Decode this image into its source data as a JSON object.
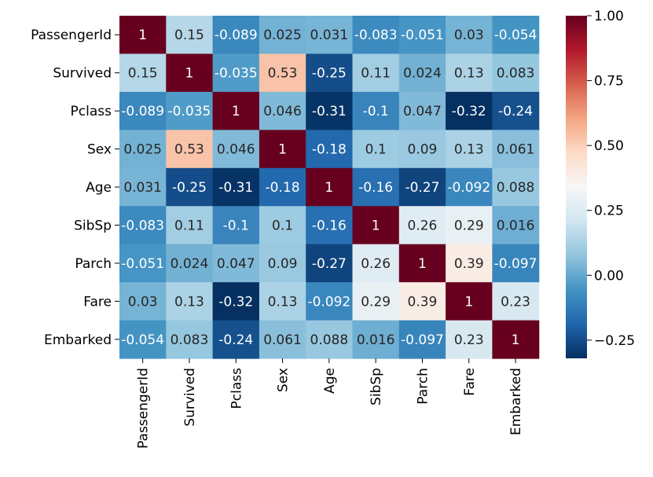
{
  "chart_data": {
    "type": "heatmap",
    "title": "",
    "xlabel": "",
    "ylabel": "",
    "rows": [
      "PassengerId",
      "Survived",
      "Pclass",
      "Sex",
      "Age",
      "SibSp",
      "Parch",
      "Fare",
      "Embarked"
    ],
    "columns": [
      "PassengerId",
      "Survived",
      "Pclass",
      "Sex",
      "Age",
      "SibSp",
      "Parch",
      "Fare",
      "Embarked"
    ],
    "values": [
      [
        1,
        0.15,
        -0.089,
        0.025,
        0.031,
        -0.083,
        -0.051,
        0.03,
        -0.054
      ],
      [
        0.15,
        1,
        -0.035,
        0.53,
        -0.25,
        0.11,
        0.024,
        0.13,
        0.083
      ],
      [
        -0.089,
        -0.035,
        1,
        0.046,
        -0.31,
        -0.1,
        0.047,
        -0.32,
        -0.24
      ],
      [
        0.025,
        0.53,
        0.046,
        1,
        -0.18,
        0.1,
        0.09,
        0.13,
        0.061
      ],
      [
        0.031,
        -0.25,
        -0.31,
        -0.18,
        1,
        -0.16,
        -0.27,
        -0.092,
        0.088
      ],
      [
        -0.083,
        0.11,
        -0.1,
        0.1,
        -0.16,
        1,
        0.26,
        0.29,
        0.016
      ],
      [
        -0.051,
        0.024,
        0.047,
        0.09,
        -0.27,
        0.26,
        1,
        0.39,
        -0.097
      ],
      [
        0.03,
        0.13,
        -0.32,
        0.13,
        -0.092,
        0.29,
        0.39,
        1,
        0.23
      ],
      [
        -0.054,
        0.083,
        -0.24,
        0.061,
        0.088,
        0.016,
        -0.097,
        0.23,
        1
      ]
    ],
    "annotations": [
      [
        "1",
        "0.15",
        "-0.089",
        "0.025",
        "0.031",
        "-0.083",
        "-0.051",
        "0.03",
        "-0.054"
      ],
      [
        "0.15",
        "1",
        "-0.035",
        "0.53",
        "-0.25",
        "0.11",
        "0.024",
        "0.13",
        "0.083"
      ],
      [
        "-0.089",
        "-0.035",
        "1",
        "0.046",
        "-0.31",
        "-0.1",
        "0.047",
        "-0.32",
        "-0.24"
      ],
      [
        "0.025",
        "0.53",
        "0.046",
        "1",
        "-0.18",
        "0.1",
        "0.09",
        "0.13",
        "0.061"
      ],
      [
        "0.031",
        "-0.25",
        "-0.31",
        "-0.18",
        "1",
        "-0.16",
        "-0.27",
        "-0.092",
        "0.088"
      ],
      [
        "-0.083",
        "0.11",
        "-0.1",
        "0.1",
        "-0.16",
        "1",
        "0.26",
        "0.29",
        "0.016"
      ],
      [
        "-0.051",
        "0.024",
        "0.047",
        "0.09",
        "-0.27",
        "0.26",
        "1",
        "0.39",
        "-0.097"
      ],
      [
        "0.03",
        "0.13",
        "-0.32",
        "0.13",
        "-0.092",
        "0.29",
        "0.39",
        "1",
        "0.23"
      ],
      [
        "-0.054",
        "0.083",
        "-0.24",
        "0.061",
        "0.088",
        "0.016",
        "-0.097",
        "0.23",
        "1"
      ]
    ],
    "colormap": "RdBu_r",
    "vmin": -0.32,
    "vmax": 1.0,
    "colorbar": {
      "ticks": [
        1.0,
        0.75,
        0.5,
        0.25,
        0.0,
        -0.25
      ],
      "tick_labels": [
        "1.00",
        "0.75",
        "0.50",
        "0.25",
        "0.00",
        "−0.25"
      ]
    },
    "grid": false,
    "legend": "colorbar-right"
  }
}
